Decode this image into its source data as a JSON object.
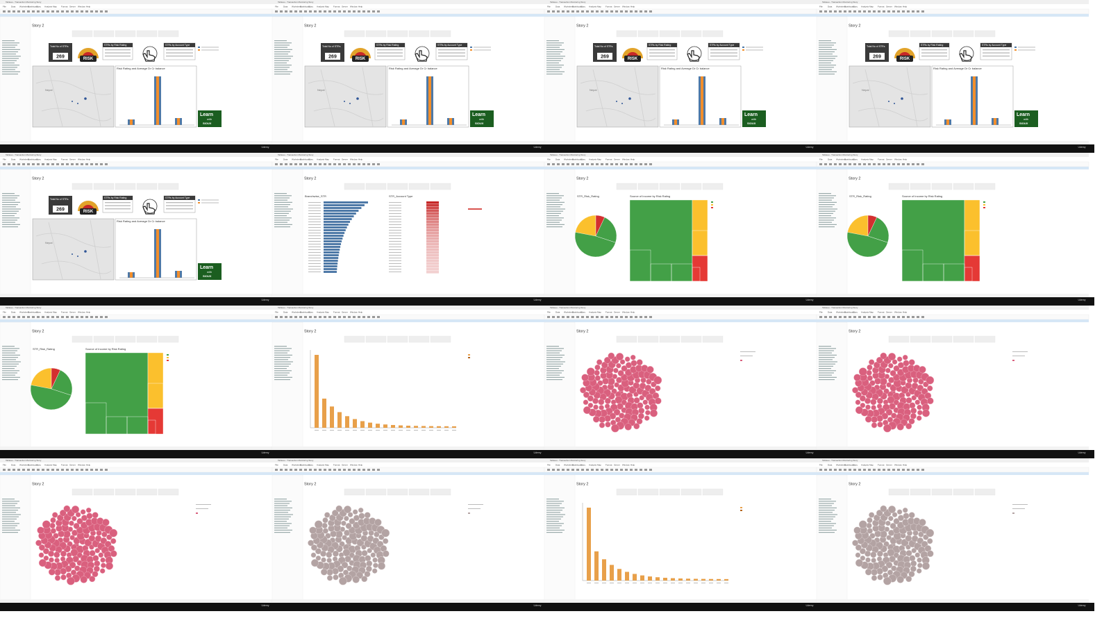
{
  "app_title": "Tableau - Transaction Monitoring Story",
  "menu": [
    "File",
    "Data",
    "Worksheet",
    "Dashboard",
    "Story",
    "Analysis",
    "Map",
    "Format",
    "Server",
    "Window",
    "Help"
  ],
  "story_title": "Story 2",
  "footer": "Udemy",
  "frames": [
    {
      "view": "dashboard"
    },
    {
      "view": "dashboard"
    },
    {
      "view": "dashboard"
    },
    {
      "view": "dashboard"
    },
    {
      "view": "dashboard"
    },
    {
      "view": "branch"
    },
    {
      "view": "pie"
    },
    {
      "view": "pie"
    },
    {
      "view": "pie"
    },
    {
      "view": "pareto"
    },
    {
      "view": "bubble_pink"
    },
    {
      "view": "bubble_pink"
    },
    {
      "view": "bubble_pink"
    },
    {
      "view": "bubble_gray"
    },
    {
      "view": "pareto"
    },
    {
      "view": "bubble_gray"
    }
  ],
  "dashboard": {
    "total_label": "Total No of STRs",
    "total_value": "269",
    "risk_badge": "RISK",
    "risk_rating_title": "STRs by Risk Rating",
    "account_type_title": "STRs by Account Type",
    "map_label": "Nepal",
    "bar_title": "Risk Rating and Average Dr Cr balance",
    "learn_1": "Learn",
    "learn_2": "with",
    "learn_3": "SIOUX"
  },
  "branch": {
    "left_title": "Branchwise_STR",
    "right_title": "STR_Account Type"
  },
  "pie": {
    "left_title": "STR_Risk_Rating",
    "right_title": "Source of Income by Risk Rating"
  }
}
